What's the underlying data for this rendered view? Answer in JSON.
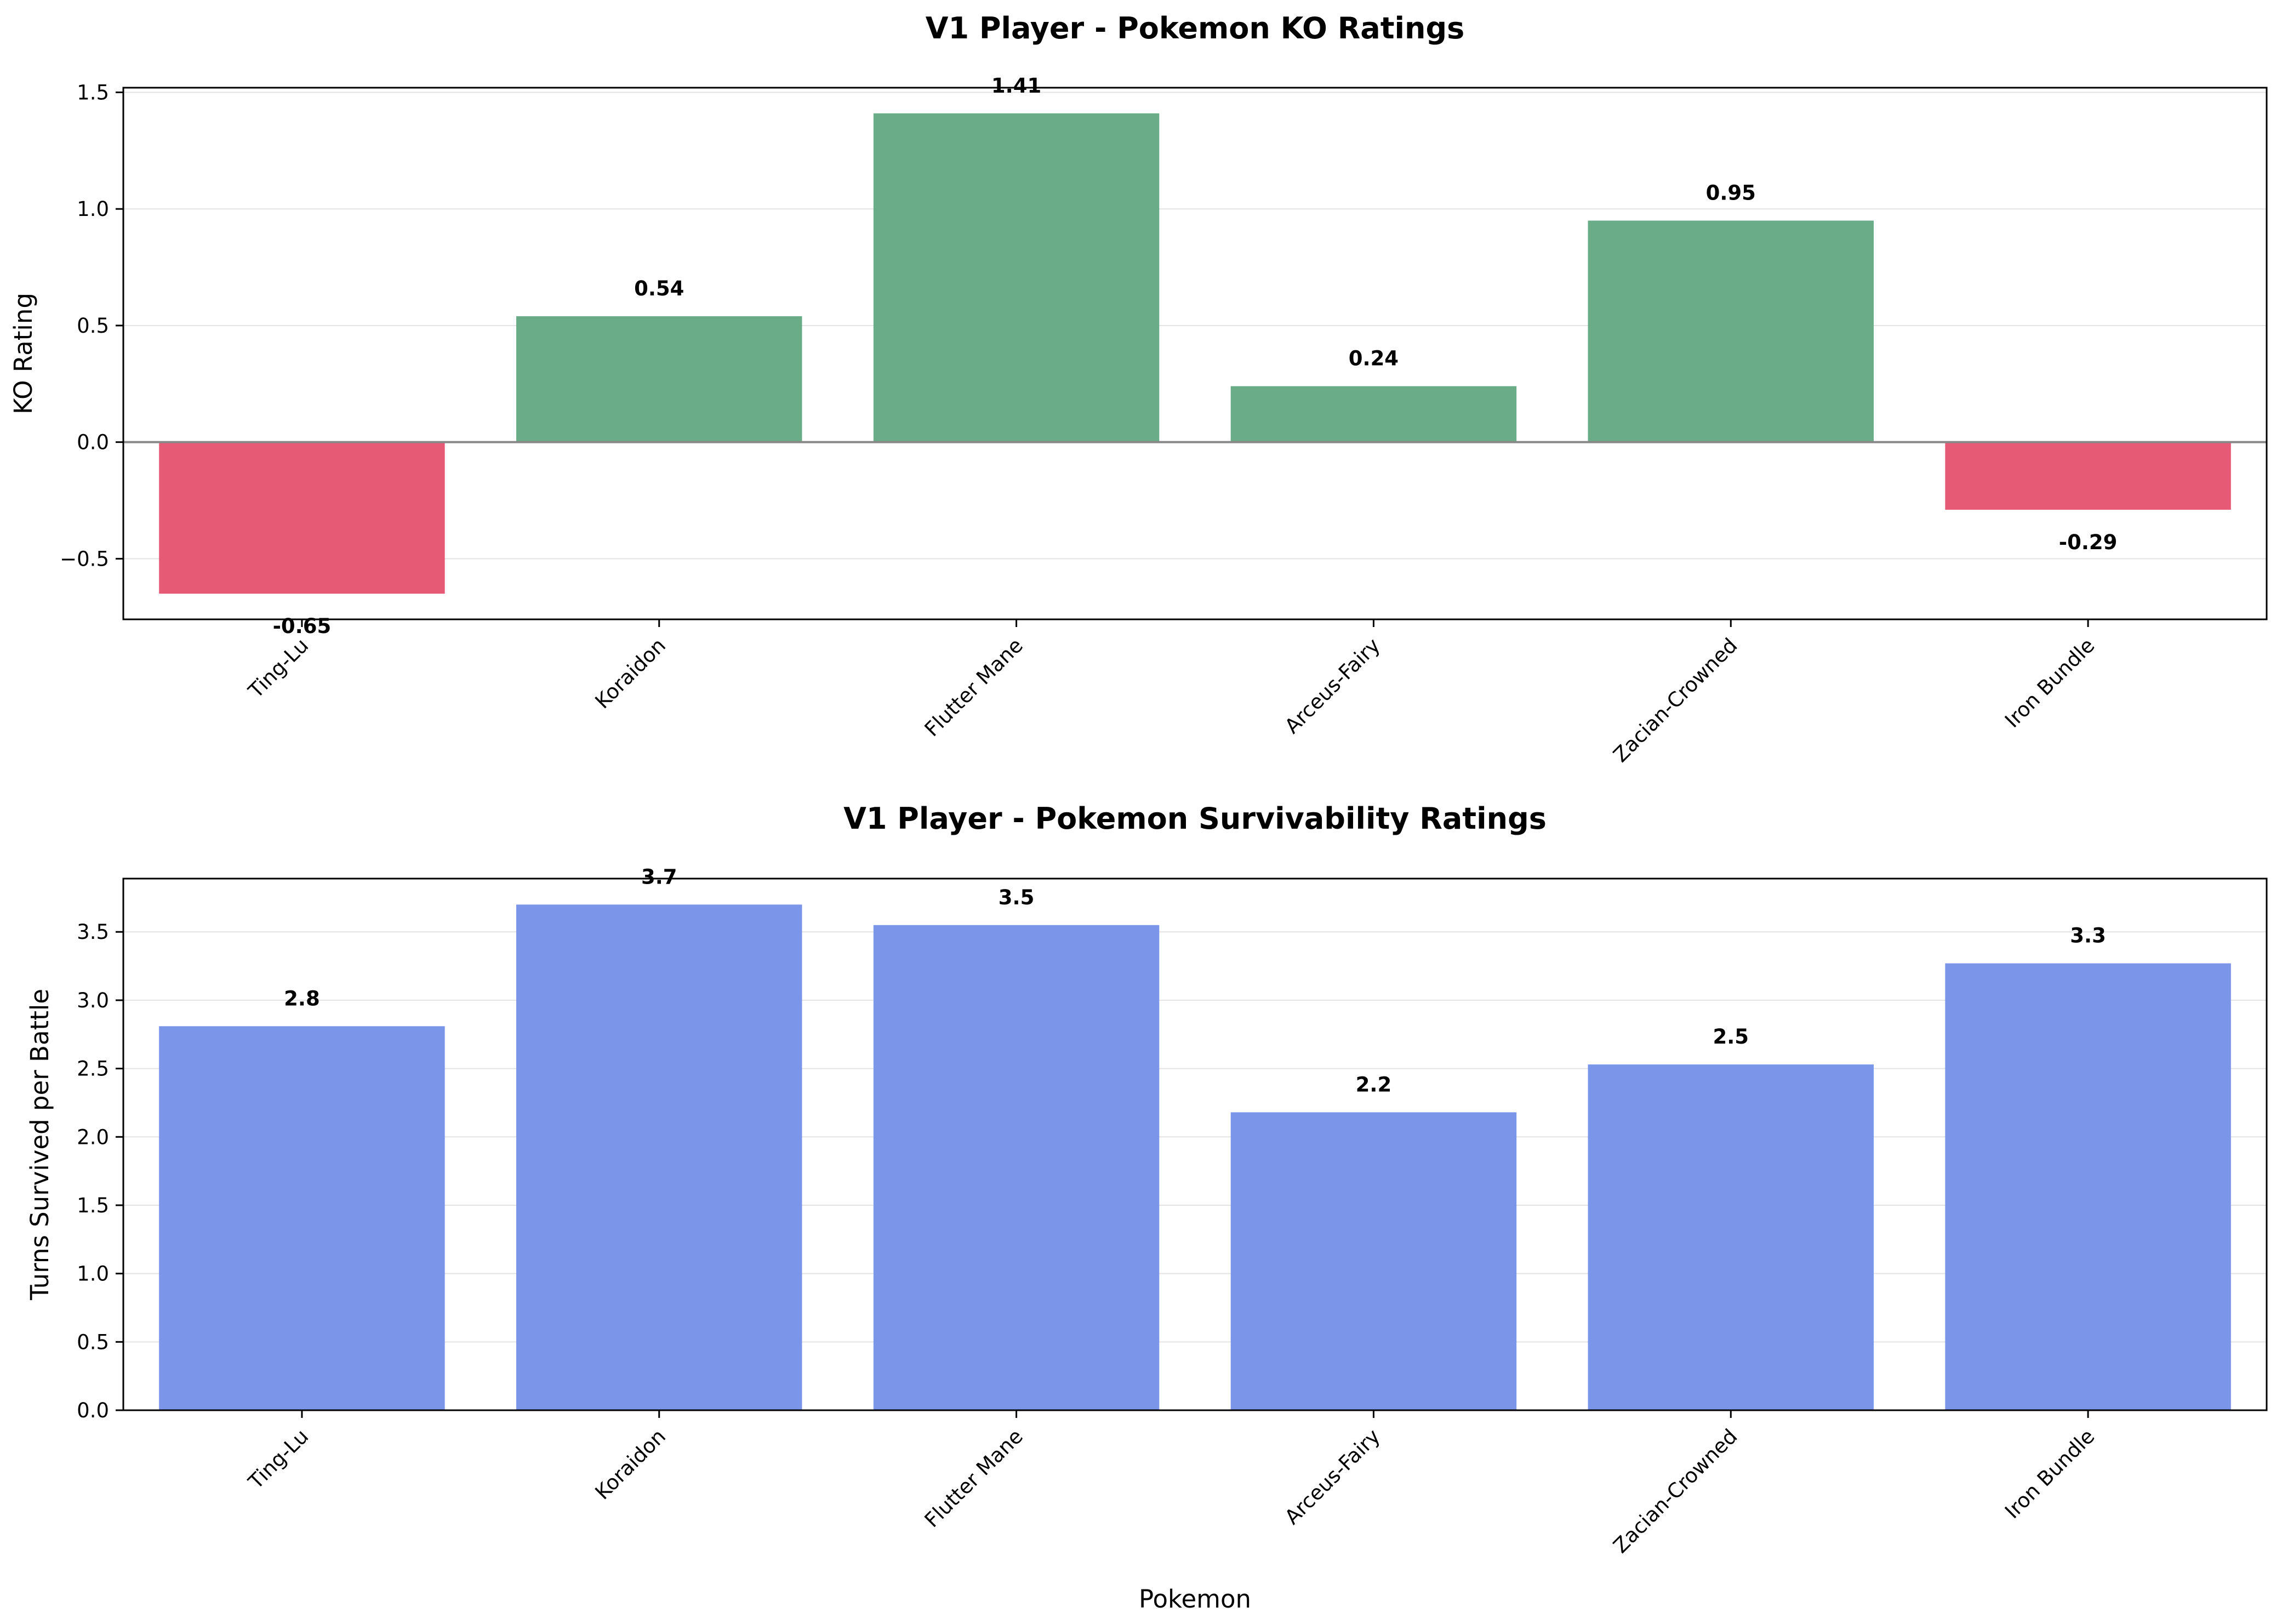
{
  "chart_data": [
    {
      "type": "bar",
      "title": "V1 Player - Pokemon KO Ratings",
      "xlabel": "",
      "ylabel": "KO Rating",
      "categories": [
        "Ting-Lu",
        "Koraidon",
        "Flutter Mane",
        "Arceus-Fairy",
        "Zacian-Crowned",
        "Iron Bundle"
      ],
      "values": [
        -0.65,
        0.54,
        1.41,
        0.24,
        0.95,
        -0.29
      ],
      "value_labels": [
        "-0.65",
        "0.54",
        "1.41",
        "0.24",
        "0.95",
        "-0.29"
      ],
      "ylim": [
        -0.76,
        1.52
      ],
      "yticks": [
        -0.5,
        0.0,
        0.5,
        1.0,
        1.5
      ],
      "ytick_labels": [
        "−0.5",
        "0.0",
        "0.5",
        "1.0",
        "1.5"
      ],
      "zero_line": true,
      "grid": "y",
      "colors": {
        "positive": "#6aac88",
        "negative": "#e65a76"
      }
    },
    {
      "type": "bar",
      "title": "V1 Player - Pokemon Survivability Ratings",
      "xlabel": "Pokemon",
      "ylabel": "Turns Survived per Battle",
      "categories": [
        "Ting-Lu",
        "Koraidon",
        "Flutter Mane",
        "Arceus-Fairy",
        "Zacian-Crowned",
        "Iron Bundle"
      ],
      "values": [
        2.81,
        3.7,
        3.55,
        2.18,
        2.53,
        3.27
      ],
      "value_labels": [
        "2.8",
        "3.7",
        "3.5",
        "2.2",
        "2.5",
        "3.3"
      ],
      "ylim": [
        0,
        3.89
      ],
      "yticks": [
        0.0,
        0.5,
        1.0,
        1.5,
        2.0,
        2.5,
        3.0,
        3.5
      ],
      "ytick_labels": [
        "0.0",
        "0.5",
        "1.0",
        "1.5",
        "2.0",
        "2.5",
        "3.0",
        "3.5"
      ],
      "zero_line": false,
      "grid": "y",
      "colors": {
        "positive": "#7b95e8",
        "negative": "#7b95e8"
      }
    }
  ]
}
